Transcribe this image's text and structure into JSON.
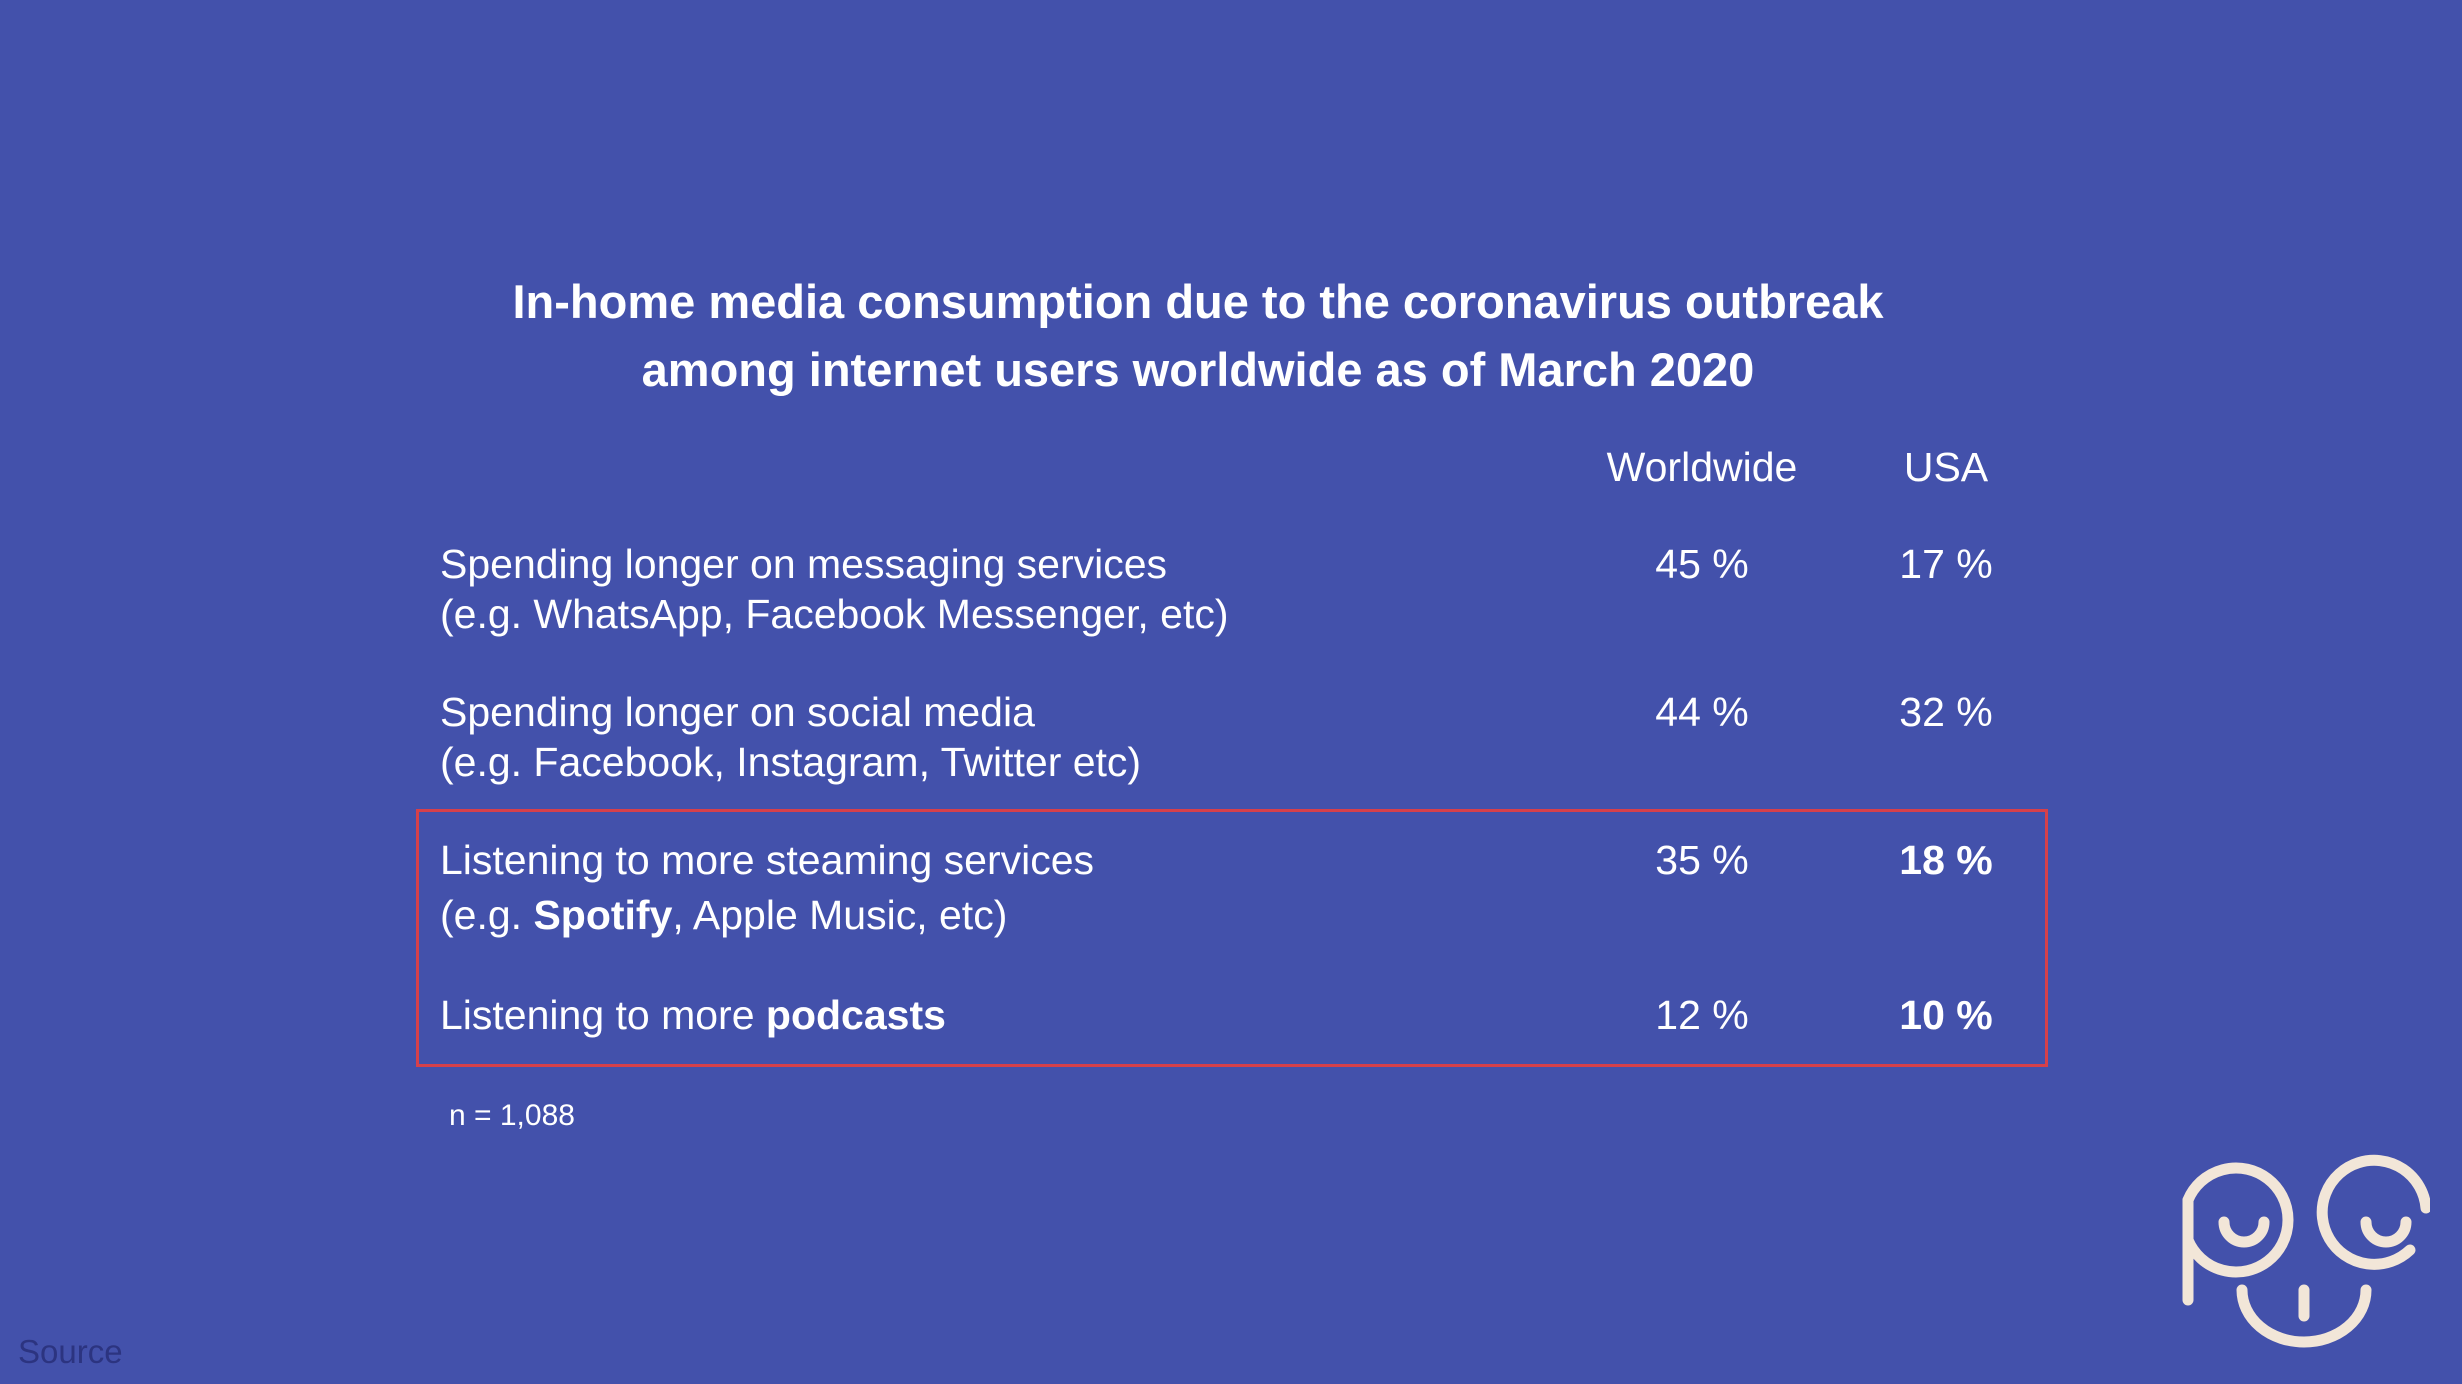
{
  "title": {
    "line1": "In-home media consumption due to the coronavirus outbreak",
    "line2": "among internet users worldwide as of March 2020"
  },
  "columns": {
    "worldwide": "Worldwide",
    "usa": "USA"
  },
  "rows": [
    {
      "line1": "Spending longer on messaging services",
      "line2": "(e.g. WhatsApp, Facebook Messenger, etc)",
      "worldwide": "45 %",
      "usa": "17 %"
    },
    {
      "line1": "Spending longer on social media",
      "line2": "(e.g. Facebook, Instagram, Twitter etc)",
      "worldwide": "44 %",
      "usa": "32 %"
    },
    {
      "line1": "Listening to more steaming services",
      "line2_prefix": "(e.g. ",
      "line2_bold": "Spotify",
      "line2_suffix": ", Apple Music, etc)",
      "worldwide": "35 %",
      "usa": "18 %"
    },
    {
      "line1_prefix": "Listening to more ",
      "line1_bold": "podcasts",
      "worldwide": "12 %",
      "usa": "10 %"
    }
  ],
  "note": "n = 1,088",
  "source": "Source",
  "colors": {
    "background": "#4351ab",
    "highlight_border": "#d6404a",
    "logo": "#f2e6d8"
  },
  "logo_icon": "smiling-face-logo-icon"
}
